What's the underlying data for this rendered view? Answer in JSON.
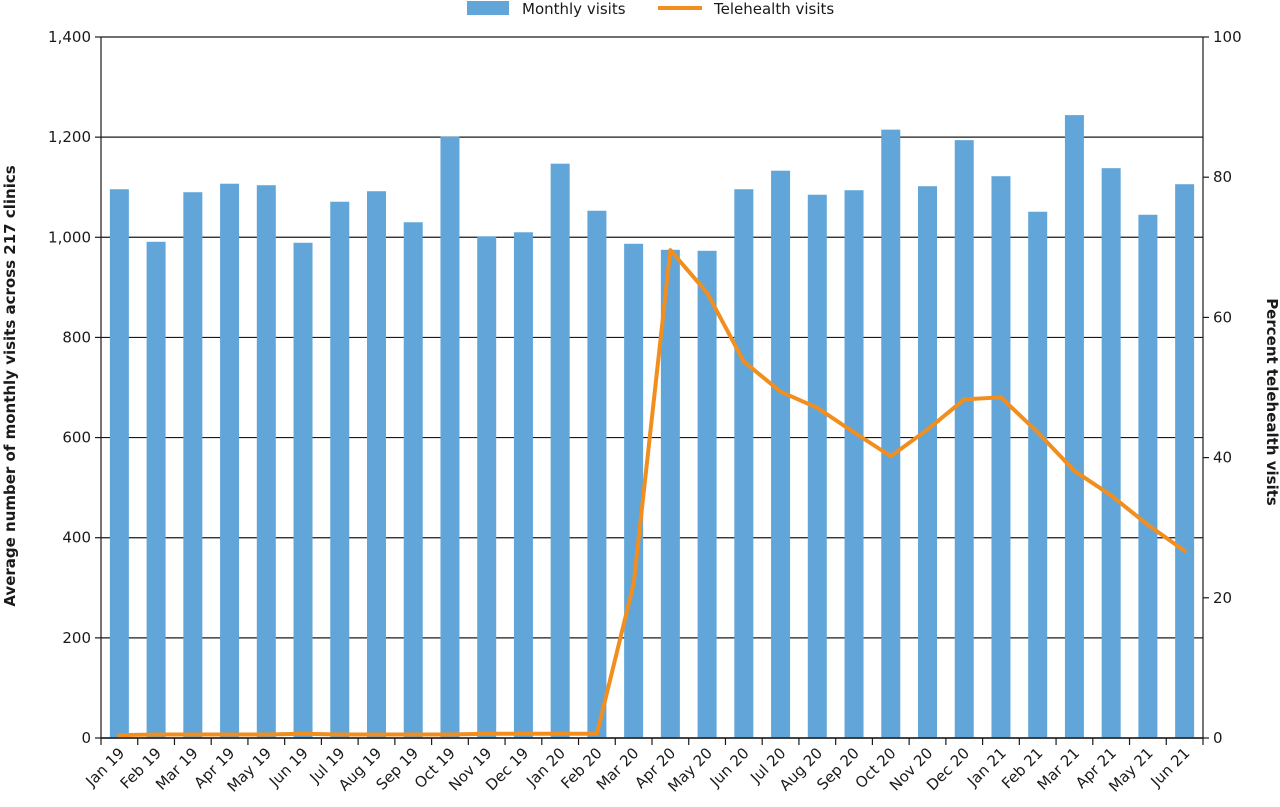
{
  "chart_data": {
    "type": "bar",
    "categories": [
      "Jan 19",
      "Feb 19",
      "Mar 19",
      "Apr 19",
      "May 19",
      "Jun 19",
      "Jul 19",
      "Aug 19",
      "Sep 19",
      "Oct 19",
      "Nov 19",
      "Dec 19",
      "Jan 20",
      "Feb 20",
      "Mar 20",
      "Apr 20",
      "May 20",
      "Jun 20",
      "Jul 20",
      "Aug 20",
      "Sep 20",
      "Oct 20",
      "Nov 20",
      "Dec 20",
      "Jan 21",
      "Feb 21",
      "Mar 21",
      "Apr 21",
      "May 21",
      "Jun 21"
    ],
    "series": [
      {
        "name": "Monthly visits",
        "type": "bar",
        "axis": "left",
        "color": "#62a6d9",
        "values": [
          1096,
          991,
          1090,
          1107,
          1104,
          989,
          1071,
          1092,
          1030,
          1201,
          1002,
          1010,
          1147,
          1053,
          987,
          975,
          973,
          1096,
          1133,
          1085,
          1094,
          1215,
          1102,
          1194,
          1122,
          1051,
          1244,
          1138,
          1045,
          1106
        ]
      },
      {
        "name": "Telehealth visits",
        "type": "line",
        "axis": "right",
        "color": "#f28e1e",
        "values": [
          0.4,
          0.5,
          0.5,
          0.5,
          0.5,
          0.6,
          0.5,
          0.5,
          0.5,
          0.5,
          0.6,
          0.6,
          0.6,
          0.6,
          22,
          69.6,
          63.5,
          53.7,
          49.4,
          47.1,
          43.6,
          40.2,
          44,
          48.3,
          48.6,
          43.6,
          38.1,
          34.6,
          30.4,
          26.7
        ]
      }
    ],
    "y_left": {
      "label": "Average number of monthly visits across 217 clinics",
      "range": [
        0,
        1400
      ],
      "ticks": [
        0,
        200,
        400,
        600,
        800,
        1000,
        1200,
        1400
      ],
      "tick_labels": [
        "0",
        "200",
        "400",
        "600",
        "800",
        "1,000",
        "1,200",
        "1,400"
      ]
    },
    "y_right": {
      "label": "Percent telehealth visits",
      "range": [
        0,
        100
      ],
      "ticks": [
        0,
        20,
        40,
        60,
        80,
        100
      ],
      "tick_labels": [
        "0",
        "20",
        "40",
        "60",
        "80",
        "100"
      ]
    },
    "xlabel": "",
    "grid": "horizontal",
    "legend_position": "top-center"
  }
}
